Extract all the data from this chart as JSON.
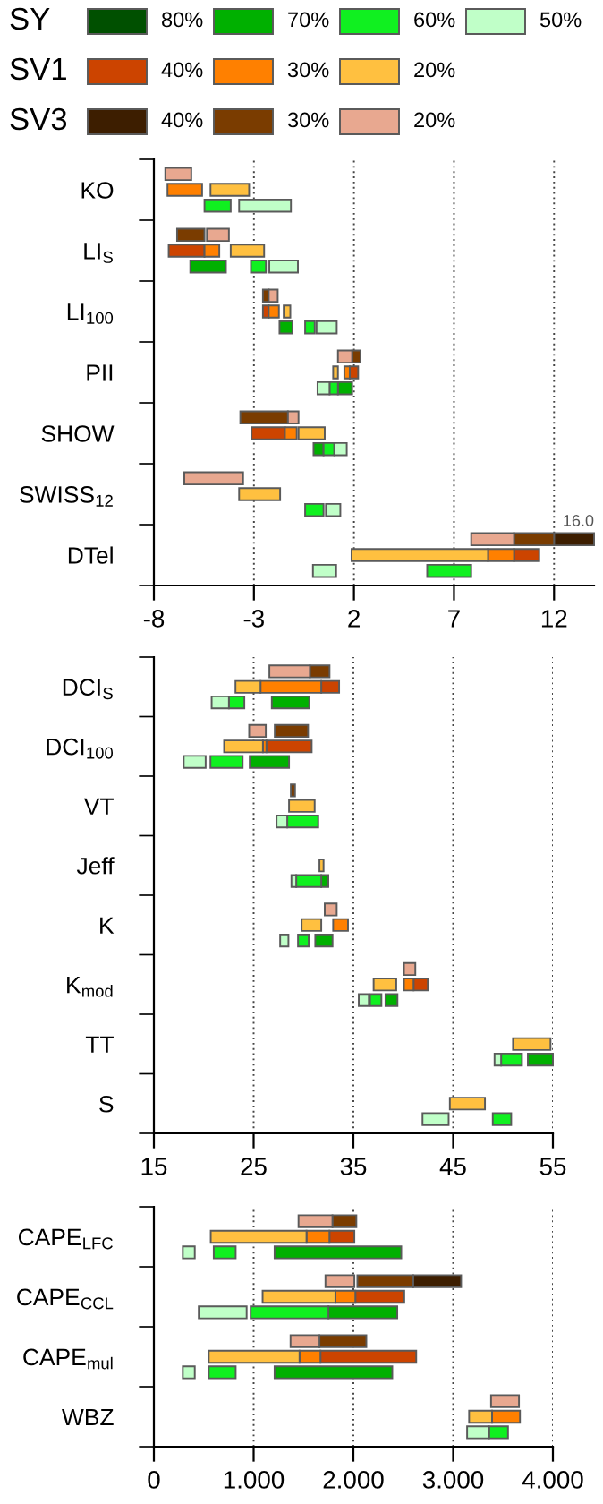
{
  "chart_data": [
    {
      "type": "bar",
      "orientation": "horizontal",
      "legend": "top",
      "grid": "x",
      "annotations": [
        "SY",
        "SV1",
        "SV3",
        "16.0"
      ],
      "categories": [
        "KO",
        "LI$_{S}$",
        "LI$_{100}$",
        "PII",
        "SHOW",
        "SWISS$_{12}$",
        "DTel"
      ],
      "xlim": [
        -8,
        14
      ],
      "xticks": [
        -8,
        -3,
        2,
        7,
        12
      ],
      "series": [
        {
          "name": "80%",
          "color": "#005000",
          "base": [
            null,
            null,
            null,
            null,
            null,
            null,
            null
          ],
          "values": [
            null,
            null,
            null,
            null,
            null,
            null,
            null
          ]
        },
        {
          "name": "70%",
          "color": "#00b000",
          "base": [
            null,
            -6.18,
            -1.72,
            1.2,
            -0.02,
            null,
            null
          ],
          "values": [
            null,
            1.78,
            0.65,
            0.71,
            0.5,
            null,
            null
          ]
        },
        {
          "name": "60%",
          "color": "#10f020",
          "base": [
            -5.47,
            -3.15,
            -0.44,
            0.78,
            0.48,
            -0.44,
            5.66
          ],
          "values": [
            1.31,
            0.75,
            0.48,
            0.42,
            0.54,
            0.92,
            2.2
          ]
        },
        {
          "name": "50%",
          "color": "#c0ffc8",
          "base": [
            -3.74,
            -2.23,
            0.13,
            0.18,
            1.02,
            0.6,
            -0.05
          ],
          "values": [
            2.59,
            1.43,
            1.01,
            0.6,
            0.62,
            0.72,
            1.16
          ]
        },
        {
          "name": "40%",
          "color": "#cc4400",
          "base": [
            null,
            -7.26,
            -2.55,
            1.79,
            -3.12,
            null,
            10.0
          ],
          "values": [
            null,
            1.79,
            0.29,
            0.42,
            1.67,
            null,
            1.26
          ]
        },
        {
          "name": "30%",
          "color": "#ff8000",
          "base": [
            -7.32,
            -5.47,
            -2.26,
            1.52,
            -1.45,
            null,
            8.7
          ],
          "values": [
            1.73,
            0.74,
            0.51,
            0.27,
            0.59,
            null,
            1.3
          ]
        },
        {
          "name": "20%",
          "color": "#ffc040",
          "base": [
            -5.17,
            -4.16,
            -1.51,
            0.96,
            -0.77,
            -3.74,
            1.88
          ],
          "values": [
            1.93,
            1.67,
            0.33,
            0.24,
            1.31,
            2.05,
            6.82
          ]
        },
        {
          "name": "40%",
          "color": "#3d1e00",
          "base": [
            null,
            null,
            null,
            null,
            null,
            null,
            12.0
          ],
          "values": [
            null,
            null,
            null,
            null,
            null,
            null,
            2.0
          ]
        },
        {
          "name": "30%",
          "color": "#7a3c00",
          "base": [
            null,
            -6.84,
            -2.55,
            1.91,
            -3.68,
            null,
            10.0
          ],
          "values": [
            null,
            1.37,
            0.29,
            0.42,
            2.38,
            null,
            2.0
          ]
        },
        {
          "name": "20%",
          "color": "#e8a890",
          "base": [
            -7.43,
            -5.35,
            -2.26,
            1.2,
            -1.3,
            -6.48,
            7.86
          ],
          "values": [
            1.3,
            1.1,
            0.45,
            0.71,
            0.53,
            2.94,
            2.14
          ]
        }
      ]
    },
    {
      "type": "bar",
      "orientation": "horizontal",
      "grid": "x",
      "categories": [
        "DCI$_{S}$",
        "DCI$_{100}$",
        "VT",
        "Jeff",
        "K",
        "K$_{mod}$",
        "TT",
        "S"
      ],
      "xlim": [
        15,
        55
      ],
      "xticks": [
        15,
        25,
        35,
        45,
        55
      ],
      "series": [
        {
          "color": "#00b000",
          "base": [
            26.82,
            24.61,
            null,
            31.78,
            31.18,
            38.22,
            52.49,
            null
          ],
          "values": [
            3.76,
            3.94,
            null,
            0.71,
            1.73,
            1.2,
            2.51,
            null
          ]
        },
        {
          "color": "#10f020",
          "base": [
            22.52,
            20.67,
            28.37,
            29.27,
            29.45,
            36.67,
            49.81,
            48.97
          ],
          "values": [
            1.55,
            3.23,
            3.11,
            2.51,
            1.07,
            1.14,
            2.09,
            1.85
          ]
        },
        {
          "color": "#c0ffc8",
          "base": [
            20.79,
            17.99,
            27.3,
            28.79,
            27.66,
            35.54,
            49.15,
            41.93
          ],
          "values": [
            1.73,
            2.2,
            1.07,
            0.48,
            0.83,
            1.01,
            0.66,
            2.62
          ]
        },
        {
          "color": "#cc4400",
          "base": [
            31.78,
            26.28,
            null,
            null,
            null,
            41.03,
            null,
            null
          ],
          "values": [
            1.79,
            4.54,
            null,
            null,
            null,
            1.43,
            null,
            null
          ]
        },
        {
          "color": "#ff8000",
          "base": [
            25.69,
            25.93,
            null,
            null,
            32.97,
            40.07,
            null,
            null
          ],
          "values": [
            6.09,
            0.35,
            null,
            null,
            1.49,
            0.96,
            null,
            null
          ]
        },
        {
          "color": "#ffc040",
          "base": [
            23.18,
            22.04,
            28.55,
            31.6,
            29.81,
            37.03,
            51.0,
            44.67
          ],
          "values": [
            2.51,
            3.89,
            2.57,
            0.41,
            1.97,
            2.27,
            3.76,
            3.52
          ]
        },
        {
          "color": "#7a3c00",
          "base": [
            30.64,
            27.12,
            28.73,
            null,
            null,
            null,
            null,
            null
          ],
          "values": [
            1.97,
            3.34,
            0.42,
            null,
            null,
            null,
            null,
            null
          ]
        },
        {
          "color": "#e8a890",
          "base": [
            26.58,
            24.55,
            null,
            null,
            32.13,
            40.07,
            null,
            null
          ],
          "values": [
            4.06,
            1.67,
            null,
            null,
            1.2,
            1.14,
            null,
            null
          ]
        }
      ]
    },
    {
      "type": "bar",
      "orientation": "horizontal",
      "grid": "x",
      "categories": [
        "CAPE$_{LFC}$",
        "CAPE$_{CCL}$",
        "CAPE$_{mul}$",
        "WBZ"
      ],
      "xlim": [
        0,
        4
      ],
      "xticks": [
        0,
        {
          "value": 1,
          "label": "1.000"
        },
        {
          "value": 2,
          "label": "2.000"
        },
        {
          "value": 3,
          "label": "3.000"
        },
        {
          "value": 4,
          "label": "4.000"
        }
      ],
      "series": [
        {
          "color": "#00b000",
          "base": [
            1.21,
            1.75,
            1.21,
            null
          ],
          "values": [
            1.27,
            0.69,
            1.18,
            null
          ]
        },
        {
          "color": "#10f020",
          "base": [
            0.6,
            0.97,
            0.55,
            3.36
          ],
          "values": [
            0.22,
            0.78,
            0.27,
            0.19
          ]
        },
        {
          "color": "#c0ffc8",
          "base": [
            0.29,
            0.45,
            0.29,
            3.14
          ],
          "values": [
            0.12,
            0.48,
            0.12,
            0.22
          ]
        },
        {
          "color": "#cc4400",
          "base": [
            1.76,
            2.02,
            1.67,
            null
          ],
          "values": [
            0.25,
            0.49,
            0.96,
            null
          ]
        },
        {
          "color": "#ff8000",
          "base": [
            1.53,
            1.82,
            1.46,
            3.39
          ],
          "values": [
            0.23,
            0.2,
            0.21,
            0.28
          ]
        },
        {
          "color": "#ffc040",
          "base": [
            0.57,
            1.09,
            0.55,
            3.16
          ],
          "values": [
            0.96,
            0.73,
            0.91,
            0.23
          ]
        },
        {
          "color": "#3d1e00",
          "base": [
            null,
            2.6,
            null,
            null
          ],
          "values": [
            null,
            0.48,
            null,
            null
          ]
        },
        {
          "color": "#7a3c00",
          "base": [
            1.79,
            2.04,
            1.66,
            null
          ],
          "values": [
            0.24,
            0.56,
            0.47,
            null
          ]
        },
        {
          "color": "#e8a890",
          "base": [
            1.45,
            1.72,
            1.37,
            3.38
          ],
          "values": [
            0.34,
            0.29,
            0.29,
            0.28
          ]
        }
      ]
    }
  ]
}
